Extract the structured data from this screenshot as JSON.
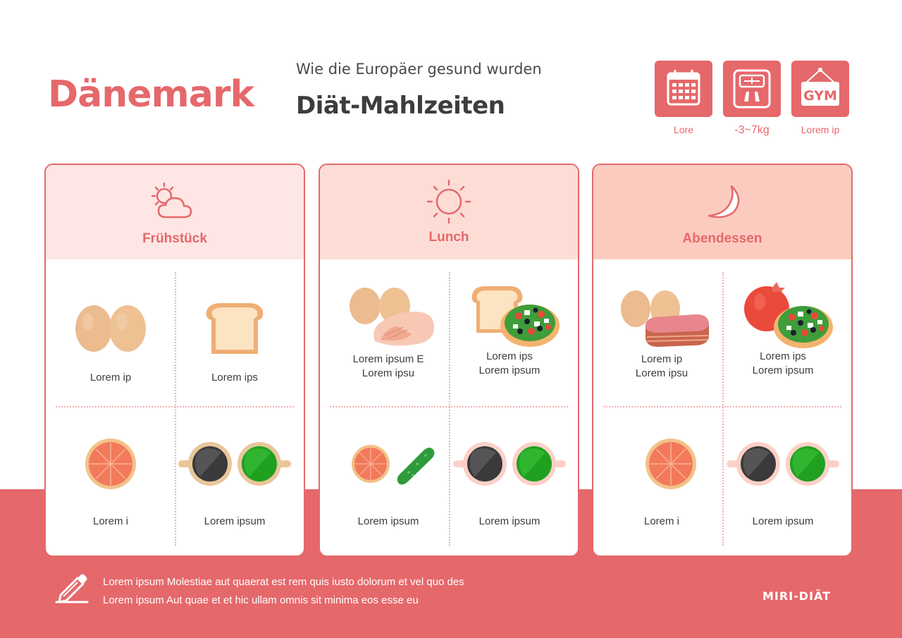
{
  "header": {
    "title": "Dänemark",
    "subtitle": "Wie die Europäer gesund wurden",
    "heading": "Diät-Mahlzeiten"
  },
  "badges": [
    {
      "icon": "calendar-icon",
      "label": "Lore"
    },
    {
      "icon": "scale-icon",
      "label": "-3~7kg"
    },
    {
      "icon": "gym-sign-icon",
      "label": "Lorem ip",
      "sign_text": "GYM"
    }
  ],
  "meals": [
    {
      "title": "Frühstück",
      "icon": "sun-cloud-icon",
      "header_color": "#fde6e4",
      "items": [
        {
          "icon": "eggs-icon",
          "label": "Lorem ip"
        },
        {
          "icon": "toast-icon",
          "label": "Lorem ips"
        },
        {
          "icon": "grapefruit-icon",
          "label": "Lorem i"
        },
        {
          "icon": "cups-icon",
          "label": "Lorem ipsum"
        }
      ]
    },
    {
      "title": "Lunch",
      "icon": "sun-icon",
      "header_color": "#fddcd6",
      "items": [
        {
          "icon": "eggs-chicken-icon",
          "label": "Lorem ipsum E\nLorem ipsu"
        },
        {
          "icon": "toast-salad-icon",
          "label": "Lorem ips\nLorem ipsum"
        },
        {
          "icon": "grapefruit-cucumber-icon",
          "label": "Lorem ipsum"
        },
        {
          "icon": "cups-icon",
          "label": "Lorem ipsum"
        }
      ]
    },
    {
      "title": "Abendessen",
      "icon": "moon-icon",
      "header_color": "#fccbbf",
      "items": [
        {
          "icon": "eggs-steak-icon",
          "label": "Lorem ip\nLorem ipsu"
        },
        {
          "icon": "tomato-salad-icon",
          "label": "Lorem ips\nLorem ipsum"
        },
        {
          "icon": "grapefruit-icon",
          "label": "Lorem i"
        },
        {
          "icon": "cups-icon",
          "label": "Lorem ipsum"
        }
      ]
    }
  ],
  "footer": {
    "icon": "pencil-icon",
    "line1": "Lorem ipsum Molestiae aut quaerat est rem quis iusto dolorum et vel quo des",
    "line2": "Lorem ipsum Aut quae et et hic ullam omnis sit minima eos esse eu",
    "brand": "MIRI-DIÄT"
  },
  "colors": {
    "accent": "#e5686b",
    "text": "#3d3d3d"
  }
}
